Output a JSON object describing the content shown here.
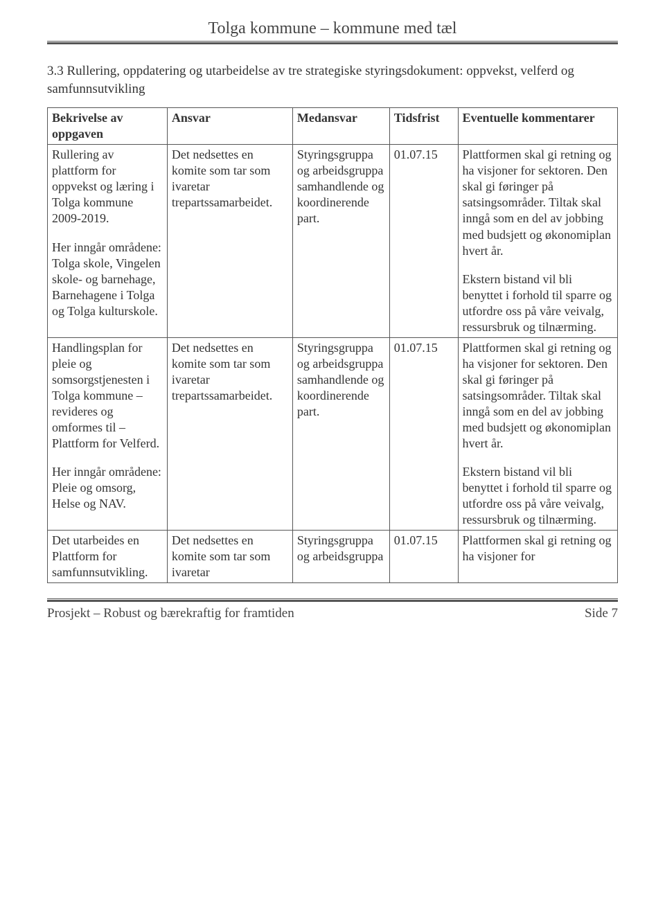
{
  "header": {
    "title": "Tolga kommune – kommune med tæl"
  },
  "section": {
    "heading": "3.3 Rullering, oppdatering og utarbeidelse av tre strategiske styringsdokument: oppvekst, velferd og samfunnsutvikling"
  },
  "table": {
    "columns": [
      "Bekrivelse av oppgaven",
      "Ansvar",
      "Medansvar",
      "Tidsfrist",
      "Eventuelle kommentarer"
    ],
    "rows": [
      {
        "bekrivelse_p1": "Rullering av plattform for oppvekst og læring i Tolga kommune 2009-2019.",
        "bekrivelse_p2": "Her inngår områdene: Tolga skole, Vingelen skole- og barnehage, Barnehagene i Tolga og Tolga kulturskole.",
        "ansvar": "Det nedsettes en komite som tar som ivaretar trepartssamarbeidet.",
        "medansvar": "Styringsgruppa og arbeidsgruppa samhandlende og koordinerende part.",
        "tidsfrist": "01.07.15",
        "kommentar_p1": "Plattformen skal gi retning og ha visjoner for sektoren. Den skal gi føringer på satsingsområder. Tiltak skal inngå som en del av jobbing med budsjett og økonomiplan hvert år.",
        "kommentar_p2": "Ekstern bistand vil bli benyttet i forhold til sparre og utfordre oss på våre veivalg, ressursbruk og tilnærming."
      },
      {
        "bekrivelse_p1": "Handlingsplan for pleie og somsorgstjenesten i Tolga kommune – revideres og omformes til – Plattform for Velferd.",
        "bekrivelse_p2": "Her inngår områdene: Pleie og omsorg, Helse og NAV.",
        "ansvar": "Det nedsettes en komite som tar som ivaretar trepartssamarbeidet.",
        "medansvar": "Styringsgruppa og arbeidsgruppa samhandlende og koordinerende part.",
        "tidsfrist": "01.07.15",
        "kommentar_p1": "Plattformen skal gi retning og ha visjoner for sektoren. Den skal gi føringer på satsingsområder. Tiltak skal inngå som en del av jobbing med budsjett og økonomiplan hvert år.",
        "kommentar_p2": "Ekstern bistand vil bli benyttet i forhold til sparre og utfordre oss på våre veivalg, ressursbruk og tilnærming."
      },
      {
        "bekrivelse_p1": "Det utarbeides en Plattform for samfunnsutvikling.",
        "ansvar": "Det nedsettes en komite som tar som ivaretar",
        "medansvar": "Styringsgruppa og arbeidsgruppa",
        "tidsfrist": "01.07.15",
        "kommentar_p1": "Plattformen skal gi retning og ha visjoner for"
      }
    ]
  },
  "footer": {
    "left": "Prosjekt – Robust og bærekraftig for framtiden",
    "right": "Side 7"
  }
}
